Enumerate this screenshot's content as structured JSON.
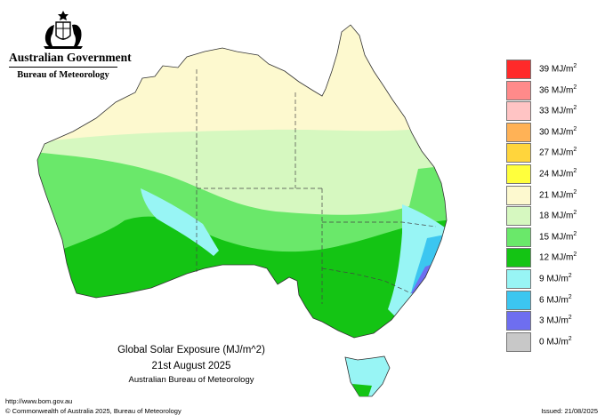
{
  "header": {
    "government": "Australian Government",
    "bureau": "Bureau of Meteorology"
  },
  "title": {
    "line1": "Global Solar Exposure (MJ/m^2)",
    "line2": "21st August 2025",
    "line3": "Australian Bureau of Meteorology"
  },
  "legend": {
    "items": [
      {
        "value": "39",
        "unit": "MJ/m",
        "sup": "2",
        "color": "#ff2a2a"
      },
      {
        "value": "36",
        "unit": "MJ/m",
        "sup": "2",
        "color": "#ff8a8a"
      },
      {
        "value": "33",
        "unit": "MJ/m",
        "sup": "2",
        "color": "#ffc4c4"
      },
      {
        "value": "30",
        "unit": "MJ/m",
        "sup": "2",
        "color": "#ffb256"
      },
      {
        "value": "27",
        "unit": "MJ/m",
        "sup": "2",
        "color": "#ffd53c"
      },
      {
        "value": "24",
        "unit": "MJ/m",
        "sup": "2",
        "color": "#ffff3c"
      },
      {
        "value": "21",
        "unit": "MJ/m",
        "sup": "2",
        "color": "#fdf9cf"
      },
      {
        "value": "18",
        "unit": "MJ/m",
        "sup": "2",
        "color": "#d6f8c0"
      },
      {
        "value": "15",
        "unit": "MJ/m",
        "sup": "2",
        "color": "#6ae86a"
      },
      {
        "value": "12",
        "unit": "MJ/m",
        "sup": "2",
        "color": "#14c414"
      },
      {
        "value": "9",
        "unit": "MJ/m",
        "sup": "2",
        "color": "#98f5f5"
      },
      {
        "value": "6",
        "unit": "MJ/m",
        "sup": "2",
        "color": "#3cc6f0"
      },
      {
        "value": "3",
        "unit": "MJ/m",
        "sup": "2",
        "color": "#6e6ef0"
      },
      {
        "value": "0",
        "unit": "MJ/m",
        "sup": "2",
        "color": "#c8c8c8"
      }
    ]
  },
  "map_colors": {
    "north": "#fdf9cf",
    "central": "#d6f8c0",
    "band_light": "#6ae86a",
    "band_dark": "#14c414",
    "cyan": "#98f5f5",
    "blue": "#3cc6f0",
    "violet": "#6e6ef0"
  },
  "footer": {
    "url": "http://www.bom.gov.au",
    "copyright": "© Commonwealth of Australia 2025, Bureau of Meteorology",
    "issued": "Issued: 21/08/2025"
  }
}
